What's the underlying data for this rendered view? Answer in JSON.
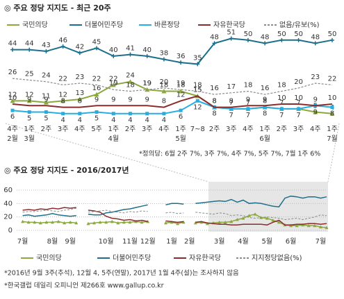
{
  "chart_data": [
    {
      "type": "line",
      "title": "◎ 주요 정당 지지도 - 최근 20주",
      "categories": [
        "4주",
        "1주",
        "2주",
        "3주",
        "4주",
        "5주",
        "1주",
        "2주",
        "3주",
        "4주",
        "1주",
        "7~8",
        "2주",
        "3주",
        "4주",
        "1주",
        "2주",
        "3주",
        "4주",
        "1주"
      ],
      "month_labels": [
        "2월",
        "3월",
        null,
        null,
        null,
        null,
        "4월",
        null,
        null,
        null,
        "5월",
        null,
        null,
        null,
        null,
        "6월",
        null,
        null,
        null,
        "7월"
      ],
      "ylim": [
        0,
        56
      ],
      "series": [
        {
          "name": "국민의당",
          "color": "#8aa83b",
          "marker": "triangle",
          "values": [
            12,
            12,
            11,
            12,
            13,
            16,
            22,
            24,
            19,
            18,
            18,
            15,
            8,
            7,
            7,
            8,
            7,
            7,
            5,
            4
          ]
        },
        {
          "name": "더불어민주당",
          "color": "#1b6f8a",
          "marker": "plus",
          "values": [
            44,
            44,
            43,
            46,
            42,
            45,
            40,
            41,
            40,
            38,
            36,
            35,
            48,
            51,
            50,
            48,
            50,
            50,
            48,
            50
          ]
        },
        {
          "name": "바른정당",
          "color": "#27aee0",
          "marker": "square",
          "values": [
            6,
            5,
            5,
            4,
            4,
            5,
            4,
            4,
            4,
            4,
            6,
            12,
            8,
            7,
            7,
            8,
            7,
            7,
            9,
            8
          ]
        },
        {
          "name": "자유한국당",
          "color": "#8c2b2b",
          "marker": "none",
          "values": [
            10,
            9,
            9,
            8,
            8,
            9,
            9,
            9,
            9,
            8,
            12,
            15,
            8,
            8,
            9,
            9,
            10,
            10,
            9,
            10
          ]
        },
        {
          "name": "없음/유보(%)",
          "color": "#8a8a8a",
          "dashed": true,
          "marker": "none",
          "values": [
            26,
            25,
            24,
            22,
            23,
            22,
            19,
            18,
            19,
            20,
            19,
            18,
            16,
            17,
            18,
            16,
            18,
            20,
            23,
            22
          ]
        }
      ],
      "note": "*정의당: 6월 2주 7%, 3주 7%, 4주 7%, 5주 7%, 7월 1주 6%"
    },
    {
      "type": "line",
      "title": "◎ 주요 정당 지지도 - 2016/2017년",
      "categories": [
        null,
        "7월",
        null,
        null,
        null,
        null,
        "8월",
        null,
        null,
        "9월",
        null,
        null,
        null,
        null,
        null,
        "10월",
        null,
        null,
        null,
        "11월",
        null,
        null,
        "12월",
        null,
        null,
        null,
        "1월",
        null,
        null,
        "2월",
        null,
        null,
        null,
        null,
        "3월",
        null,
        null,
        null,
        "4월",
        null,
        null,
        null,
        "5월",
        null,
        null,
        null,
        "6월",
        null,
        null,
        null,
        null,
        "7월",
        null
      ],
      "ylim": [
        0,
        60
      ],
      "yticks": [
        0,
        20,
        40,
        60
      ],
      "grid": true,
      "series": [
        {
          "name": "국민의당",
          "color": "#8aa83b",
          "values": [
            null,
            13,
            12,
            12,
            11,
            12,
            12,
            13,
            11,
            12,
            11,
            null,
            10,
            11,
            12,
            12,
            13,
            11,
            12,
            12,
            13,
            12,
            13,
            null,
            null,
            11,
            12,
            10,
            12,
            null,
            11,
            12,
            10,
            11,
            12,
            12,
            13,
            16,
            18,
            22,
            24,
            19,
            18,
            15,
            12,
            8,
            7,
            7,
            8,
            7,
            7,
            5,
            4
          ]
        },
        {
          "name": "더불어민주당",
          "color": "#1b6f8a",
          "values": [
            null,
            22,
            23,
            21,
            22,
            23,
            25,
            23,
            22,
            21,
            22,
            null,
            24,
            23,
            23,
            26,
            27,
            29,
            31,
            32,
            34,
            36,
            38,
            null,
            null,
            38,
            40,
            40,
            39,
            null,
            40,
            41,
            42,
            43,
            44,
            43,
            46,
            42,
            45,
            40,
            41,
            40,
            38,
            36,
            35,
            48,
            51,
            50,
            48,
            50,
            50,
            48,
            50
          ]
        },
        {
          "name": "자유한국당",
          "color": "#8c2b2b",
          "values": [
            null,
            30,
            31,
            30,
            32,
            31,
            33,
            32,
            34,
            33,
            34,
            null,
            30,
            29,
            27,
            21,
            18,
            17,
            15,
            16,
            14,
            15,
            13,
            null,
            null,
            14,
            13,
            12,
            13,
            null,
            12,
            13,
            11,
            10,
            9,
            9,
            8,
            8,
            9,
            9,
            9,
            9,
            8,
            12,
            15,
            8,
            8,
            9,
            9,
            10,
            10,
            9,
            10
          ]
        },
        {
          "name": "지지정당없음(%)",
          "color": "#8a8a8a",
          "dashed": true,
          "values": [
            null,
            27,
            28,
            28,
            29,
            30,
            29,
            28,
            30,
            31,
            33,
            null,
            27,
            28,
            29,
            30,
            28,
            27,
            26,
            28,
            27,
            29,
            28,
            null,
            null,
            26,
            27,
            25,
            26,
            null,
            27,
            26,
            25,
            24,
            26,
            25,
            22,
            23,
            22,
            19,
            18,
            19,
            20,
            19,
            18,
            16,
            17,
            18,
            16,
            18,
            20,
            23,
            22
          ]
        }
      ]
    }
  ],
  "footnotes": [
    "*2016년 9월 3주(추석), 12월 4, 5주(연말), 2017년 1월 4주(설)는 조사하지 않음",
    "*한국갤럽 데일리 오피니언 제266호 www.gallup.co.kr"
  ]
}
